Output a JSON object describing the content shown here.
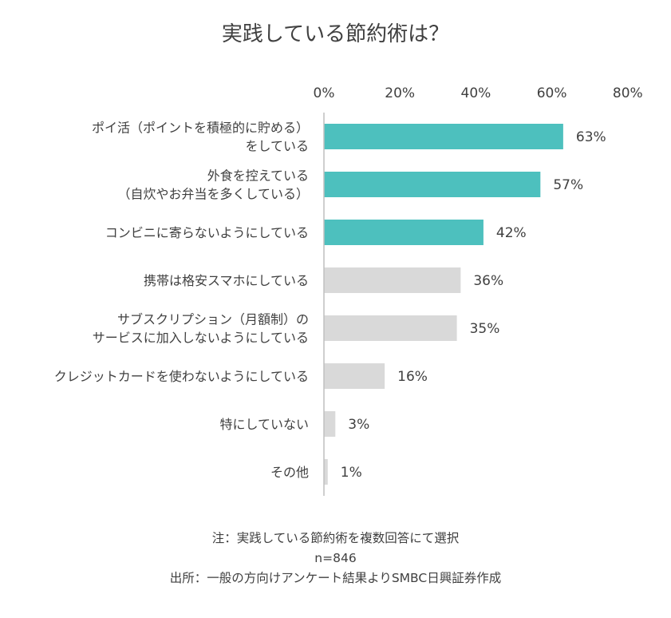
{
  "chart_data": {
    "type": "bar",
    "orientation": "horizontal",
    "title": "実践している節約術は？",
    "categories": [
      [
        "ポイ活（ポイントを積極的に貯める）",
        "をしている"
      ],
      [
        "外食を控えている",
        "（自炊やお弁当を多くしている）"
      ],
      [
        "コンビニに寄らないようにしている"
      ],
      [
        "携帯は格安スマホにしている"
      ],
      [
        "サブスクリプション（月額制）の",
        "サービスに加入しないようにしている"
      ],
      [
        "クレジットカードを使わないようにしている"
      ],
      [
        "特にしていない"
      ],
      [
        "その他"
      ]
    ],
    "values": [
      63,
      57,
      42,
      36,
      35,
      16,
      3,
      1
    ],
    "value_suffix": "%",
    "xlim": [
      0,
      80
    ],
    "xticks": [
      "0%",
      "20%",
      "40%",
      "60%",
      "80%"
    ],
    "xtick_values": [
      0,
      20,
      40,
      60,
      80
    ],
    "axis_position": "top",
    "grid": false,
    "highlight_count": 3,
    "colors": {
      "highlight": "#4DC0BE",
      "normal": "#D9D9D9",
      "axis": "#BFBFBF",
      "text": "#404040"
    }
  },
  "notes": {
    "line1": "注：実践している節約術を複数回答にて選択",
    "line2": "n=846",
    "line3": "出所：一般の方向けアンケート結果よりSMBC日興証券作成"
  }
}
